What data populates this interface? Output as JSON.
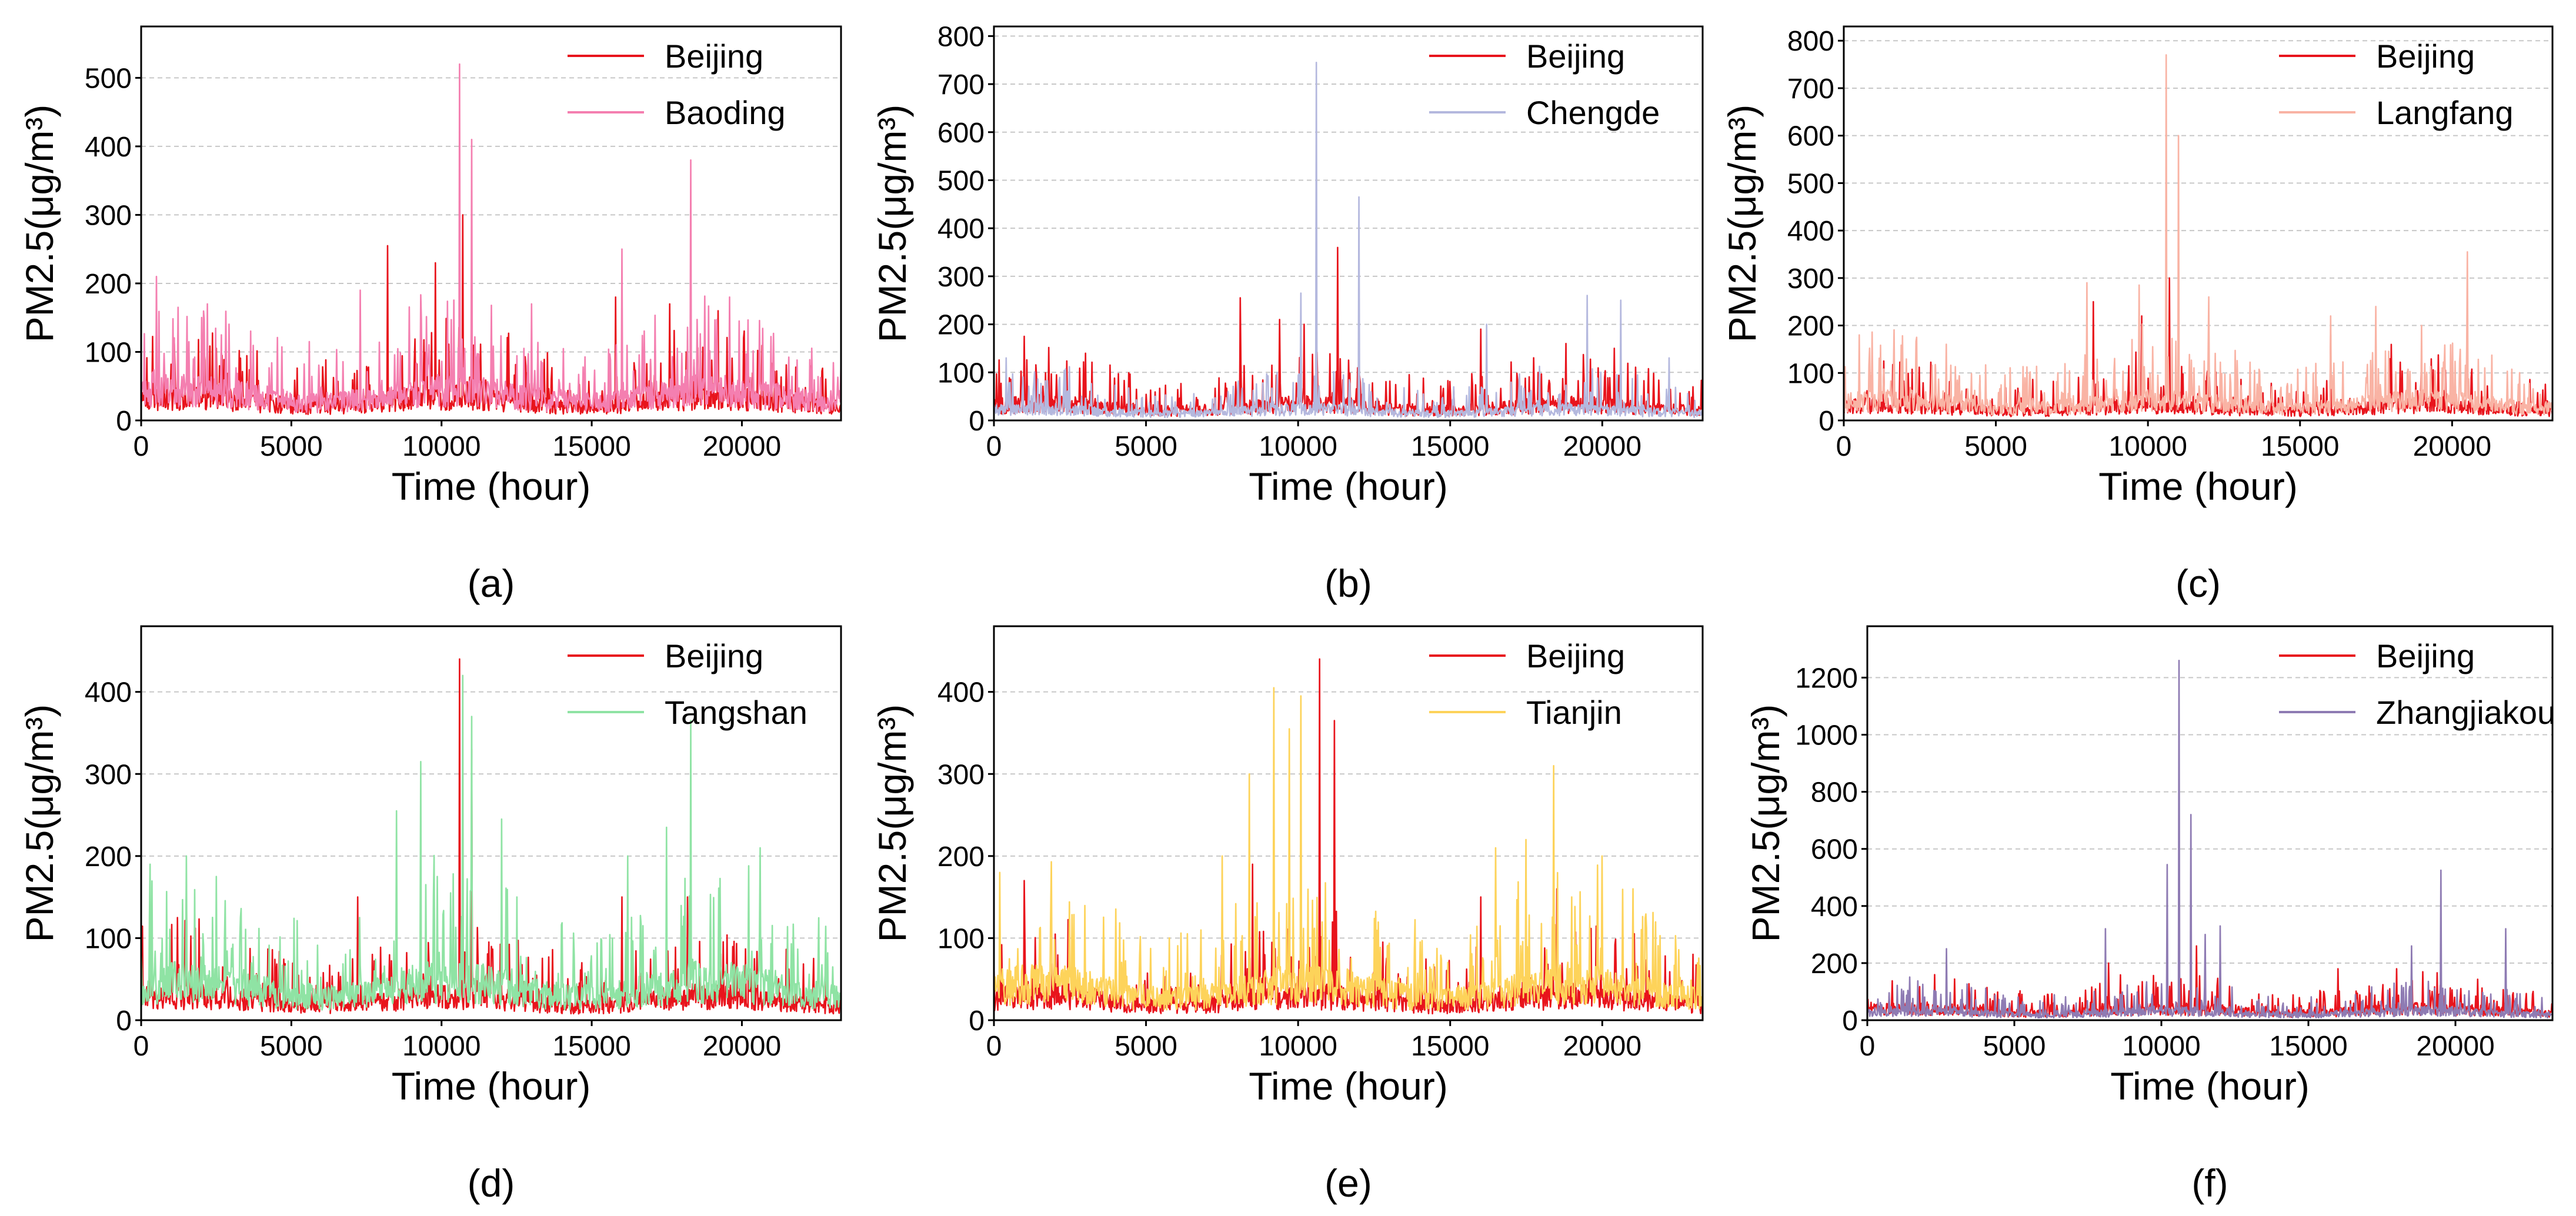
{
  "figure": {
    "panel_labels": [
      "(a)",
      "(b)",
      "(c)",
      "(d)",
      "(e)",
      "(f)"
    ]
  },
  "chart_data": [
    {
      "type": "line",
      "panel": "(a)",
      "title": "",
      "xlabel": "Time (hour)",
      "ylabel": "PM2.5(μg/m³)",
      "xlim": [
        0,
        23300
      ],
      "ylim": [
        0,
        575
      ],
      "xticks": [
        0,
        5000,
        10000,
        15000,
        20000
      ],
      "xtick_labels": [
        "0",
        "5000",
        "10000",
        "15000",
        "20000"
      ],
      "yticks": [
        0,
        100,
        200,
        300,
        400,
        500
      ],
      "ytick_labels": [
        "0",
        "100",
        "200",
        "300",
        "400",
        "500"
      ],
      "grid": "horizontal dashed",
      "legend_position": "top-right",
      "series": [
        {
          "name": "Beijing",
          "color": "#e8141c",
          "base": 32,
          "amp": 55,
          "peaks": [
            [
              8200,
              255
            ],
            [
              9800,
              230
            ],
            [
              10700,
              300
            ],
            [
              11000,
              230
            ],
            [
              15800,
              180
            ],
            [
              17600,
              170
            ],
            [
              19200,
              160
            ]
          ]
        },
        {
          "name": "Baoding",
          "color": "#f47fb0",
          "base": 42,
          "amp": 70,
          "peaks": [
            [
              10600,
              520
            ],
            [
              11000,
              410
            ],
            [
              18300,
              380
            ],
            [
              16000,
              250
            ],
            [
              7300,
              190
            ],
            [
              500,
              210
            ],
            [
              2200,
              170
            ],
            [
              13000,
              170
            ],
            [
              19600,
              180
            ]
          ]
        }
      ]
    },
    {
      "type": "line",
      "panel": "(b)",
      "title": "",
      "xlabel": "Time (hour)",
      "ylabel": "PM2.5(μg/m³)",
      "xlim": [
        0,
        23300
      ],
      "ylim": [
        0,
        820
      ],
      "xticks": [
        0,
        5000,
        10000,
        15000,
        20000
      ],
      "xtick_labels": [
        "0",
        "5000",
        "10000",
        "15000",
        "20000"
      ],
      "yticks": [
        0,
        100,
        200,
        300,
        400,
        500,
        600,
        700,
        800
      ],
      "ytick_labels": [
        "0",
        "100",
        "200",
        "300",
        "400",
        "500",
        "600",
        "700",
        "800"
      ],
      "grid": "horizontal dashed",
      "legend_position": "top-right",
      "series": [
        {
          "name": "Beijing",
          "color": "#e8141c",
          "base": 32,
          "amp": 60,
          "peaks": [
            [
              8100,
              255
            ],
            [
              11300,
              360
            ],
            [
              10200,
              200
            ],
            [
              9400,
              210
            ],
            [
              16000,
              190
            ],
            [
              18800,
              160
            ],
            [
              20400,
              150
            ],
            [
              1000,
              175
            ]
          ]
        },
        {
          "name": "Chengde",
          "color": "#b4b8de",
          "base": 22,
          "amp": 45,
          "peaks": [
            [
              10600,
              745
            ],
            [
              12000,
              465
            ],
            [
              10100,
              265
            ],
            [
              19500,
              260
            ],
            [
              20600,
              250
            ],
            [
              16200,
              200
            ],
            [
              22200,
              130
            ],
            [
              400,
              130
            ]
          ]
        }
      ]
    },
    {
      "type": "line",
      "panel": "(c)",
      "title": "",
      "xlabel": "Time (hour)",
      "ylabel": "PM2.5(μg/m³)",
      "xlim": [
        0,
        23300
      ],
      "ylim": [
        0,
        830
      ],
      "xticks": [
        0,
        5000,
        10000,
        15000,
        20000
      ],
      "xtick_labels": [
        "0",
        "5000",
        "10000",
        "15000",
        "20000"
      ],
      "yticks": [
        0,
        100,
        200,
        300,
        400,
        500,
        600,
        700,
        800
      ],
      "ytick_labels": [
        "0",
        "100",
        "200",
        "300",
        "400",
        "500",
        "600",
        "700",
        "800"
      ],
      "grid": "horizontal dashed",
      "legend_position": "top-right",
      "series": [
        {
          "name": "Beijing",
          "color": "#e8141c",
          "base": 30,
          "amp": 55,
          "peaks": [
            [
              8200,
              250
            ],
            [
              10700,
              300
            ],
            [
              9800,
              220
            ],
            [
              16000,
              180
            ],
            [
              18000,
              160
            ]
          ]
        },
        {
          "name": "Langfang",
          "color": "#f9b3a4",
          "base": 40,
          "amp": 75,
          "peaks": [
            [
              10600,
              770
            ],
            [
              11000,
              600
            ],
            [
              20500,
              355
            ],
            [
              8000,
              290
            ],
            [
              9700,
              285
            ],
            [
              12000,
              260
            ],
            [
              16000,
              220
            ],
            [
              17500,
              240
            ],
            [
              500,
              180
            ],
            [
              2400,
              175
            ],
            [
              19000,
              200
            ]
          ]
        }
      ]
    },
    {
      "type": "line",
      "panel": "(d)",
      "title": "",
      "xlabel": "Time (hour)",
      "ylabel": "PM2.5(μg/m³)",
      "xlim": [
        0,
        23300
      ],
      "ylim": [
        0,
        480
      ],
      "xticks": [
        0,
        5000,
        10000,
        15000,
        20000
      ],
      "xtick_labels": [
        "0",
        "5000",
        "10000",
        "15000",
        "20000"
      ],
      "yticks": [
        0,
        100,
        200,
        300,
        400
      ],
      "ytick_labels": [
        "0",
        "100",
        "200",
        "300",
        "400"
      ],
      "grid": "horizontal dashed",
      "legend_position": "top-right",
      "series": [
        {
          "name": "Beijing",
          "color": "#e8141c",
          "base": 28,
          "amp": 50,
          "peaks": [
            [
              10600,
              440
            ],
            [
              11000,
              330
            ],
            [
              1500,
              165
            ],
            [
              7200,
              150
            ],
            [
              16000,
              150
            ],
            [
              18200,
              150
            ]
          ]
        },
        {
          "name": "Tangshan",
          "color": "#8fe3a4",
          "base": 45,
          "amp": 75,
          "peaks": [
            [
              10700,
              420
            ],
            [
              11000,
              370
            ],
            [
              18300,
              365
            ],
            [
              9300,
              315
            ],
            [
              8500,
              255
            ],
            [
              12000,
              245
            ],
            [
              17500,
              235
            ],
            [
              16200,
              200
            ],
            [
              20600,
              210
            ],
            [
              300,
              190
            ],
            [
              1500,
              200
            ],
            [
              2500,
              175
            ]
          ]
        }
      ]
    },
    {
      "type": "line",
      "panel": "(e)",
      "title": "",
      "xlabel": "Time (hour)",
      "ylabel": "PM2.5(μg/m³)",
      "xlim": [
        0,
        23300
      ],
      "ylim": [
        0,
        480
      ],
      "xticks": [
        0,
        5000,
        10000,
        15000,
        20000
      ],
      "xtick_labels": [
        "0",
        "5000",
        "10000",
        "15000",
        "20000"
      ],
      "yticks": [
        0,
        100,
        200,
        300,
        400
      ],
      "ytick_labels": [
        "0",
        "100",
        "200",
        "300",
        "400"
      ],
      "grid": "horizontal dashed",
      "legend_position": "top-right",
      "series": [
        {
          "name": "Beijing",
          "color": "#e8141c",
          "base": 28,
          "amp": 50,
          "peaks": [
            [
              10700,
              440
            ],
            [
              11200,
              365
            ],
            [
              1000,
              170
            ],
            [
              8500,
              190
            ],
            [
              16000,
              150
            ],
            [
              18500,
              160
            ]
          ]
        },
        {
          "name": "Tianjin",
          "color": "#fdd35a",
          "base": 42,
          "amp": 70,
          "peaks": [
            [
              9200,
              405
            ],
            [
              10100,
              395
            ],
            [
              9700,
              355
            ],
            [
              18400,
              310
            ],
            [
              8400,
              300
            ],
            [
              7500,
              200
            ],
            [
              16500,
              210
            ],
            [
              17500,
              220
            ],
            [
              20000,
              200
            ],
            [
              200,
              180
            ],
            [
              21000,
              160
            ]
          ]
        }
      ]
    },
    {
      "type": "line",
      "panel": "(f)",
      "title": "",
      "xlabel": "Time (hour)",
      "ylabel": "PM2.5(μg/m³)",
      "xlim": [
        0,
        23300
      ],
      "ylim": [
        0,
        1380
      ],
      "xticks": [
        0,
        5000,
        10000,
        15000,
        20000
      ],
      "xtick_labels": [
        "0",
        "5000",
        "10000",
        "15000",
        "20000"
      ],
      "yticks": [
        0,
        200,
        400,
        600,
        800,
        1000,
        1200
      ],
      "ytick_labels": [
        "0",
        "200",
        "400",
        "600",
        "800",
        "1000",
        "1200"
      ],
      "grid": "horizontal dashed",
      "legend_position": "top-right",
      "series": [
        {
          "name": "Beijing",
          "color": "#e8141c",
          "base": 38,
          "amp": 65,
          "peaks": [
            [
              10600,
              300
            ],
            [
              11200,
              260
            ],
            [
              8200,
              200
            ],
            [
              16000,
              180
            ],
            [
              18000,
              180
            ]
          ]
        },
        {
          "name": "Zhangjiakou",
          "color": "#8e7bb3",
          "base": 30,
          "amp": 55,
          "peaks": [
            [
              10600,
              1260
            ],
            [
              11000,
              720
            ],
            [
              10200,
              545
            ],
            [
              19500,
              525
            ],
            [
              12000,
              330
            ],
            [
              8100,
              320
            ],
            [
              21700,
              320
            ],
            [
              2700,
              250
            ],
            [
              18500,
              260
            ],
            [
              11500,
              300
            ]
          ]
        }
      ]
    }
  ]
}
